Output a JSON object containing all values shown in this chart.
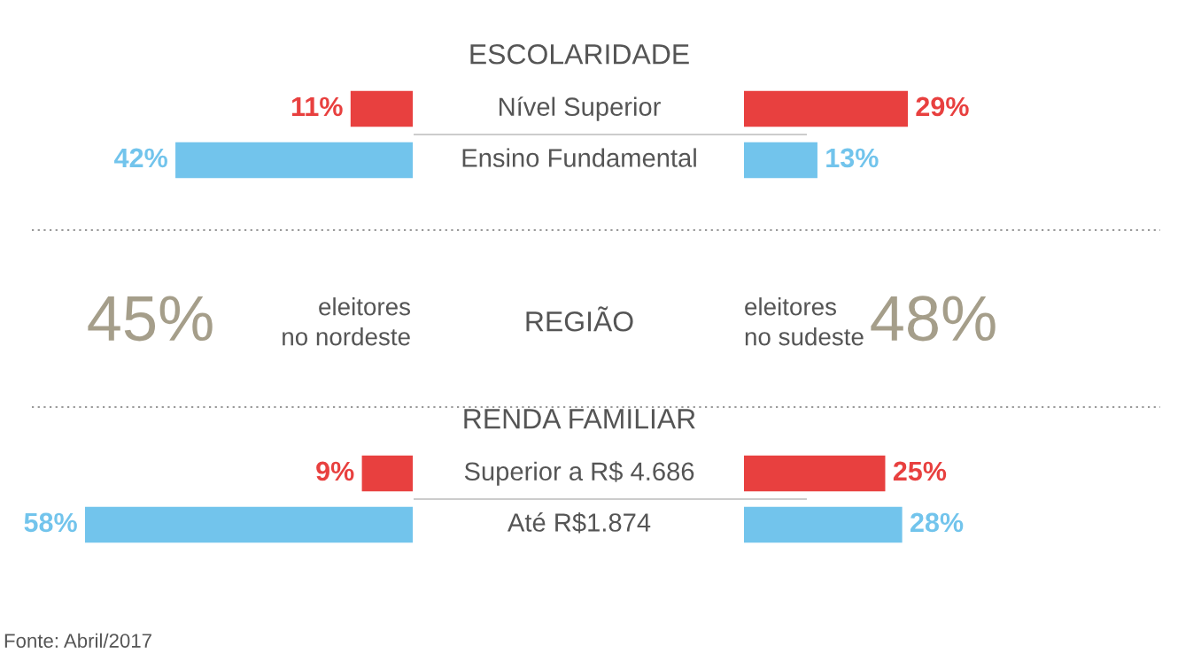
{
  "chart_data": [
    {
      "type": "other",
      "title": "ESCOLARIDADE"
    },
    {
      "type": "bar",
      "orientation": "horizontal",
      "categories": [
        "Nível Superior",
        "Ensino Fundamental"
      ],
      "tick_labels": false,
      "series": [
        {
          "colors": [
            "#e8403f",
            "#72c4ec"
          ],
          "values": [
            11,
            42
          ],
          "value_labels": [
            "11%",
            "42%"
          ]
        }
      ]
    },
    {
      "type": "bar",
      "orientation": "horizontal",
      "categories": [
        null,
        null
      ],
      "tick_labels": false,
      "series": [
        {
          "colors": [
            "#e8403f",
            "#72c4ec"
          ],
          "values": [
            29,
            13
          ],
          "value_labels": [
            "29%",
            "13%"
          ]
        }
      ]
    },
    {
      "type": "other",
      "title": "REGIÃO",
      "annotations": [
        "45%",
        "eleitores\nno nordeste",
        "eleitores\nno sudeste",
        "48%"
      ]
    },
    {
      "type": "other",
      "title": "RENDA FAMILIAR"
    },
    {
      "type": "bar",
      "orientation": "horizontal",
      "categories": [
        "Superior a R$ 4.686",
        "Até R$1.874"
      ],
      "tick_labels": false,
      "series": [
        {
          "colors": [
            "#e8403f",
            "#72c4ec"
          ],
          "values": [
            9,
            58
          ],
          "value_labels": [
            "9%",
            "58%"
          ]
        }
      ],
      "annotations": [
        "Fonte: Abril/2017"
      ]
    },
    {
      "type": "bar",
      "orientation": "horizontal",
      "categories": [
        null,
        null
      ],
      "tick_labels": false,
      "series": [
        {
          "colors": [
            "#e8403f",
            "#72c4ec"
          ],
          "values": [
            25,
            28
          ],
          "value_labels": [
            "25%",
            "28%"
          ]
        }
      ]
    }
  ]
}
